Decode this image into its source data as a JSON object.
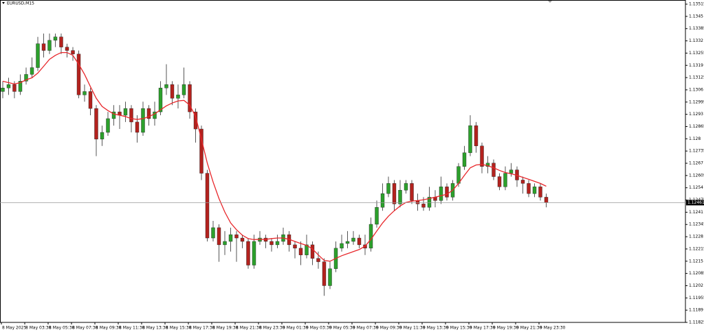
{
  "chart_data": {
    "type": "candlestick",
    "title": "EURUSD,M15",
    "up_color": "#2ca02c",
    "down_color": "#b3221e",
    "wick_color": "#555555",
    "ylim": [
      1.11825,
      1.13537
    ],
    "yticks": [
      1.13515,
      1.1345,
      1.13385,
      1.1332,
      1.13255,
      1.1319,
      1.13125,
      1.1306,
      1.12995,
      1.1293,
      1.12865,
      1.128,
      1.12735,
      1.1267,
      1.12605,
      1.1254,
      1.12475,
      1.1241,
      1.12345,
      1.1228,
      1.12215,
      1.1215,
      1.12085,
      1.1202,
      1.11955,
      1.1189,
      1.11825
    ],
    "current_price": 1.12461,
    "x_labels": [
      "8 May 2025",
      "8 May 03:30",
      "8 May 05:30",
      "8 May 07:30",
      "8 May 09:30",
      "8 May 11:30",
      "8 May 13:30",
      "8 May 15:30",
      "8 May 17:30",
      "8 May 19:30",
      "8 May 21:30",
      "8 May 23:30",
      "9 May 01:30",
      "9 May 03:30",
      "9 May 05:30",
      "9 May 07:30",
      "9 May 09:30",
      "9 May 11:30",
      "9 May 13:30",
      "9 May 15:30",
      "9 May 17:30",
      "9 May 19:30",
      "9 May 21:30",
      "9 May 23:30"
    ],
    "ohlc": [
      [
        1.13051,
        1.13106,
        1.13015,
        1.1307
      ],
      [
        1.1307,
        1.13124,
        1.13033,
        1.13088
      ],
      [
        1.13088,
        1.13106,
        1.13015,
        1.13051
      ],
      [
        1.13051,
        1.13142,
        1.13033,
        1.13106
      ],
      [
        1.13106,
        1.13178,
        1.13088,
        1.13142
      ],
      [
        1.13142,
        1.13232,
        1.13124,
        1.13178
      ],
      [
        1.13178,
        1.13341,
        1.1316,
        1.13305
      ],
      [
        1.13305,
        1.13359,
        1.13232,
        1.13269
      ],
      [
        1.13269,
        1.13359,
        1.1325,
        1.13323
      ],
      [
        1.13323,
        1.13359,
        1.13287,
        1.13341
      ],
      [
        1.13341,
        1.13359,
        1.1325,
        1.13287
      ],
      [
        1.13287,
        1.13305,
        1.13232,
        1.13269
      ],
      [
        1.13269,
        1.13287,
        1.13214,
        1.1325
      ],
      [
        1.1325,
        1.13269,
        1.13015,
        1.13033
      ],
      [
        1.13033,
        1.13088,
        1.12997,
        1.13051
      ],
      [
        1.13051,
        1.1307,
        1.12925,
        1.12961
      ],
      [
        1.12961,
        1.12979,
        1.12708,
        1.12798
      ],
      [
        1.12798,
        1.1287,
        1.12762,
        1.12834
      ],
      [
        1.12834,
        1.12943,
        1.12816,
        1.12907
      ],
      [
        1.12907,
        1.12979,
        1.1287,
        1.12943
      ],
      [
        1.12943,
        1.12979,
        1.12852,
        1.12925
      ],
      [
        1.12925,
        1.12997,
        1.12889,
        1.12961
      ],
      [
        1.12961,
        1.12979,
        1.12834,
        1.12889
      ],
      [
        1.12889,
        1.12925,
        1.1278,
        1.12834
      ],
      [
        1.12834,
        1.12997,
        1.12816,
        1.12961
      ],
      [
        1.12961,
        1.12979,
        1.1287,
        1.12907
      ],
      [
        1.12907,
        1.12997,
        1.1287,
        1.12943
      ],
      [
        1.12943,
        1.13106,
        1.12925,
        1.1307
      ],
      [
        1.1307,
        1.13196,
        1.13033,
        1.13088
      ],
      [
        1.13088,
        1.13106,
        1.12979,
        1.13015
      ],
      [
        1.13015,
        1.13088,
        1.12961,
        1.13033
      ],
      [
        1.13033,
        1.13178,
        1.13015,
        1.13088
      ],
      [
        1.13088,
        1.13106,
        1.12907,
        1.12943
      ],
      [
        1.12943,
        1.12961,
        1.1278,
        1.12852
      ],
      [
        1.12852,
        1.1287,
        1.12581,
        1.12617
      ],
      [
        1.12617,
        1.12635,
        1.12255,
        1.12273
      ],
      [
        1.12273,
        1.12364,
        1.12255,
        1.12328
      ],
      [
        1.12328,
        1.12346,
        1.12147,
        1.12237
      ],
      [
        1.12237,
        1.1231,
        1.12183,
        1.12255
      ],
      [
        1.12255,
        1.12328,
        1.12201,
        1.12291
      ],
      [
        1.12291,
        1.1231,
        1.12147,
        1.12273
      ],
      [
        1.12273,
        1.12291,
        1.12219,
        1.12255
      ],
      [
        1.12255,
        1.12273,
        1.1211,
        1.12129
      ],
      [
        1.12129,
        1.12291,
        1.1211,
        1.12255
      ],
      [
        1.12255,
        1.1231,
        1.12237,
        1.12273
      ],
      [
        1.12273,
        1.12291,
        1.12219,
        1.12255
      ],
      [
        1.12255,
        1.12273,
        1.12201,
        1.12237
      ],
      [
        1.12237,
        1.12291,
        1.12219,
        1.12255
      ],
      [
        1.12255,
        1.12328,
        1.12237,
        1.12291
      ],
      [
        1.12291,
        1.1231,
        1.12201,
        1.12237
      ],
      [
        1.12237,
        1.12255,
        1.12165,
        1.12219
      ],
      [
        1.12219,
        1.12255,
        1.12129,
        1.12183
      ],
      [
        1.12183,
        1.12291,
        1.12165,
        1.12237
      ],
      [
        1.12237,
        1.12255,
        1.12129,
        1.12165
      ],
      [
        1.12165,
        1.12201,
        1.1211,
        1.12147
      ],
      [
        1.12147,
        1.12165,
        1.11966,
        1.1202
      ],
      [
        1.1202,
        1.12147,
        1.12002,
        1.1211
      ],
      [
        1.1211,
        1.12255,
        1.12092,
        1.12219
      ],
      [
        1.12219,
        1.12291,
        1.12201,
        1.12244
      ],
      [
        1.12244,
        1.1231,
        1.12219,
        1.12255
      ],
      [
        1.12255,
        1.1231,
        1.12237,
        1.12273
      ],
      [
        1.12273,
        1.12291,
        1.12219,
        1.12237
      ],
      [
        1.12237,
        1.12291,
        1.12183,
        1.12219
      ],
      [
        1.12219,
        1.12382,
        1.12201,
        1.12346
      ],
      [
        1.12346,
        1.12472,
        1.12328,
        1.12436
      ],
      [
        1.12436,
        1.12563,
        1.12418,
        1.12509
      ],
      [
        1.12509,
        1.12599,
        1.1249,
        1.12563
      ],
      [
        1.12563,
        1.12581,
        1.12418,
        1.12454
      ],
      [
        1.12454,
        1.12581,
        1.12436,
        1.12527
      ],
      [
        1.12527,
        1.12581,
        1.12509,
        1.12563
      ],
      [
        1.12563,
        1.12581,
        1.12454,
        1.12472
      ],
      [
        1.12472,
        1.12509,
        1.12418,
        1.12454
      ],
      [
        1.12454,
        1.1249,
        1.12418,
        1.12436
      ],
      [
        1.12436,
        1.12545,
        1.12418,
        1.1249
      ],
      [
        1.1249,
        1.12527,
        1.12436,
        1.12472
      ],
      [
        1.12472,
        1.12599,
        1.12454,
        1.12545
      ],
      [
        1.12545,
        1.12563,
        1.12472,
        1.1249
      ],
      [
        1.1249,
        1.12581,
        1.12472,
        1.12563
      ],
      [
        1.12563,
        1.12671,
        1.12545,
        1.12653
      ],
      [
        1.12653,
        1.12762,
        1.12635,
        1.12726
      ],
      [
        1.12726,
        1.12925,
        1.12708,
        1.1287
      ],
      [
        1.1287,
        1.12889,
        1.12726,
        1.12762
      ],
      [
        1.12762,
        1.1278,
        1.12617,
        1.12653
      ],
      [
        1.12653,
        1.12708,
        1.12617,
        1.12671
      ],
      [
        1.12671,
        1.1269,
        1.12581,
        1.12599
      ],
      [
        1.12599,
        1.12617,
        1.12527,
        1.12545
      ],
      [
        1.12545,
        1.12653,
        1.12527,
        1.12617
      ],
      [
        1.12617,
        1.12671,
        1.12599,
        1.12635
      ],
      [
        1.12635,
        1.12653,
        1.12545,
        1.12581
      ],
      [
        1.12581,
        1.12599,
        1.12509,
        1.12563
      ],
      [
        1.12563,
        1.12581,
        1.1249,
        1.12509
      ],
      [
        1.12509,
        1.12563,
        1.1249,
        1.12545
      ],
      [
        1.12545,
        1.12563,
        1.12472,
        1.1249
      ],
      [
        1.1249,
        1.12509,
        1.12436,
        1.12461
      ]
    ],
    "ma": {
      "color": "#e8262a",
      "values": [
        1.13106,
        1.13098,
        1.13091,
        1.13098,
        1.13113,
        1.13124,
        1.13149,
        1.13185,
        1.13222,
        1.13243,
        1.13258,
        1.13258,
        1.13243,
        1.13196,
        1.13142,
        1.13077,
        1.13015,
        1.12972,
        1.1295,
        1.12932,
        1.12925,
        1.12918,
        1.12907,
        1.12903,
        1.12907,
        1.12918,
        1.12932,
        1.12954,
        1.12975,
        1.1299,
        1.13001,
        1.13004,
        1.12979,
        1.12918,
        1.12798,
        1.12671,
        1.1257,
        1.12483,
        1.12411,
        1.12353,
        1.12317,
        1.12288,
        1.1227,
        1.12265,
        1.12266,
        1.12266,
        1.1227,
        1.12273,
        1.12273,
        1.12266,
        1.12255,
        1.12244,
        1.12234,
        1.12215,
        1.12183,
        1.12154,
        1.1215,
        1.12165,
        1.12179,
        1.1219,
        1.12201,
        1.12212,
        1.1223,
        1.12266,
        1.1231,
        1.12353,
        1.12389,
        1.12418,
        1.12443,
        1.12462,
        1.12469,
        1.12472,
        1.12476,
        1.12483,
        1.1249,
        1.12498,
        1.12505,
        1.12527,
        1.12563,
        1.12606,
        1.12646,
        1.12661,
        1.12664,
        1.12657,
        1.12646,
        1.12632,
        1.12621,
        1.12614,
        1.12606,
        1.12595,
        1.12585,
        1.12574,
        1.12563,
        1.12548
      ]
    }
  }
}
